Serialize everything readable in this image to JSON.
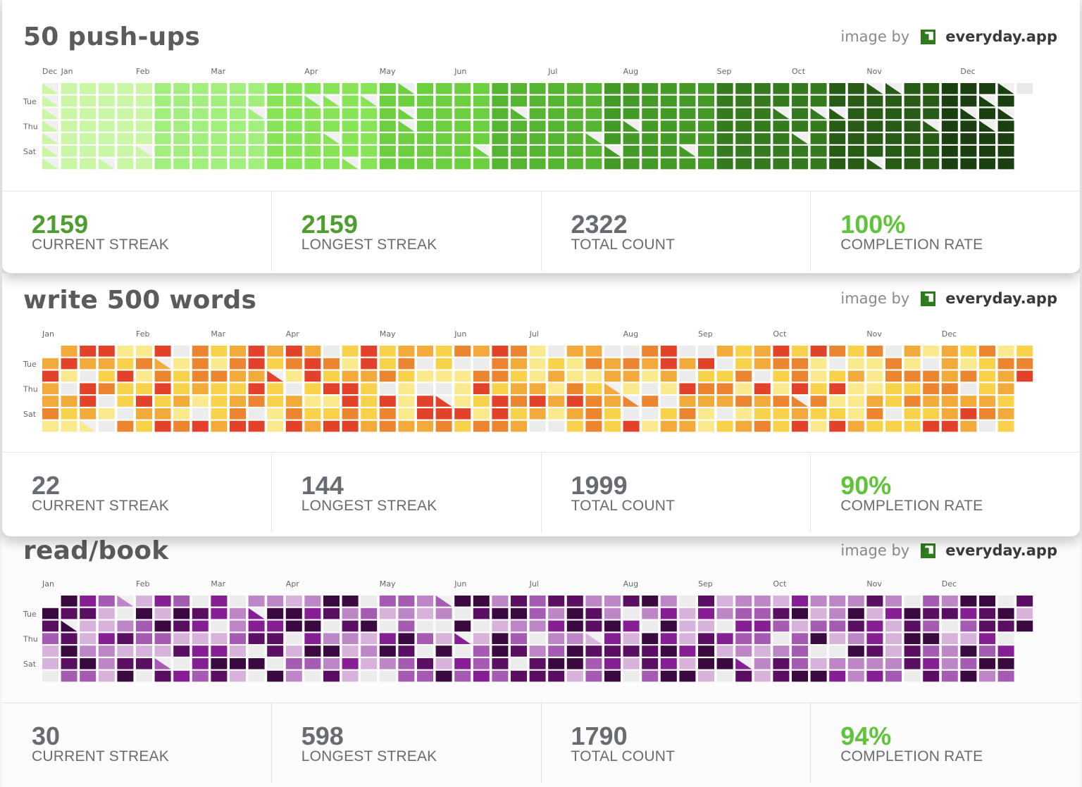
{
  "credit": {
    "prefix": "image by",
    "brand": "everyday.app",
    "logo_icon": "everyday-logo-icon"
  },
  "day_labels": [
    "Tue",
    "Thu",
    "Sat"
  ],
  "habits": [
    {
      "title": "50 push-ups",
      "months": [
        "Dec",
        "Jan",
        "Feb",
        "Mar",
        "Apr",
        "May",
        "Jun",
        "Jul",
        "Aug",
        "Sep",
        "Oct",
        "Nov",
        "Dec"
      ],
      "palette": [
        "#c9f7a6",
        "#a3ef7e",
        "#86e456",
        "#6ccf3f",
        "#55b530",
        "#449a27",
        "#357a1f",
        "#275c17",
        "#1a3f10"
      ],
      "stats": {
        "current_streak": "2159",
        "longest_streak": "2159",
        "total_count": "2322",
        "completion_rate": "100%"
      }
    },
    {
      "title": "write 500 words",
      "months": [
        "Jan",
        "Feb",
        "Mar",
        "Apr",
        "May",
        "Jun",
        "Jul",
        "Aug",
        "Sep",
        "Oct",
        "Nov",
        "Dec"
      ],
      "palette": [
        "#ececec",
        "#fbe98d",
        "#f8d24a",
        "#f2ab3a",
        "#ec8530",
        "#e3422a"
      ],
      "stats": {
        "current_streak": "22",
        "longest_streak": "144",
        "total_count": "1999",
        "completion_rate": "90%"
      }
    },
    {
      "title": "read/book",
      "months": [
        "Jan",
        "Feb",
        "Mar",
        "Apr",
        "May",
        "Jun",
        "Jul",
        "Aug",
        "Sep",
        "Oct",
        "Nov",
        "Dec"
      ],
      "palette": [
        "#ececec",
        "#d7b3dc",
        "#bd86c6",
        "#a55bb2",
        "#861f93",
        "#5a0f62",
        "#3a0940"
      ],
      "stats": {
        "current_streak": "30",
        "longest_streak": "598",
        "total_count": "1790",
        "completion_rate": "94%"
      }
    }
  ],
  "stat_labels": {
    "current_streak": "CURRENT STREAK",
    "longest_streak": "LONGEST STREAK",
    "total_count": "TOTAL COUNT",
    "completion_rate": "COMPLETION RATE"
  },
  "chart_data": [
    {
      "type": "heatmap",
      "title": "50 push-ups",
      "x": [
        "Dec",
        "Jan",
        "Feb",
        "Mar",
        "Apr",
        "May",
        "Jun",
        "Jul",
        "Aug",
        "Sep",
        "Oct",
        "Nov",
        "Dec"
      ],
      "y": [
        "Tue",
        "Thu",
        "Sat"
      ],
      "current_streak": 2159,
      "longest_streak": 2159,
      "total_count": 2322,
      "completion_rate": 100
    },
    {
      "type": "heatmap",
      "title": "write 500 words",
      "x": [
        "Jan",
        "Feb",
        "Mar",
        "Apr",
        "May",
        "Jun",
        "Jul",
        "Aug",
        "Sep",
        "Oct",
        "Nov",
        "Dec"
      ],
      "y": [
        "Tue",
        "Thu",
        "Sat"
      ],
      "current_streak": 22,
      "longest_streak": 144,
      "total_count": 1999,
      "completion_rate": 90
    },
    {
      "type": "heatmap",
      "title": "read/book",
      "x": [
        "Jan",
        "Feb",
        "Mar",
        "Apr",
        "May",
        "Jun",
        "Jul",
        "Aug",
        "Sep",
        "Oct",
        "Nov",
        "Dec"
      ],
      "y": [
        "Tue",
        "Thu",
        "Sat"
      ],
      "current_streak": 30,
      "longest_streak": 598,
      "total_count": 1790,
      "completion_rate": 94
    }
  ]
}
